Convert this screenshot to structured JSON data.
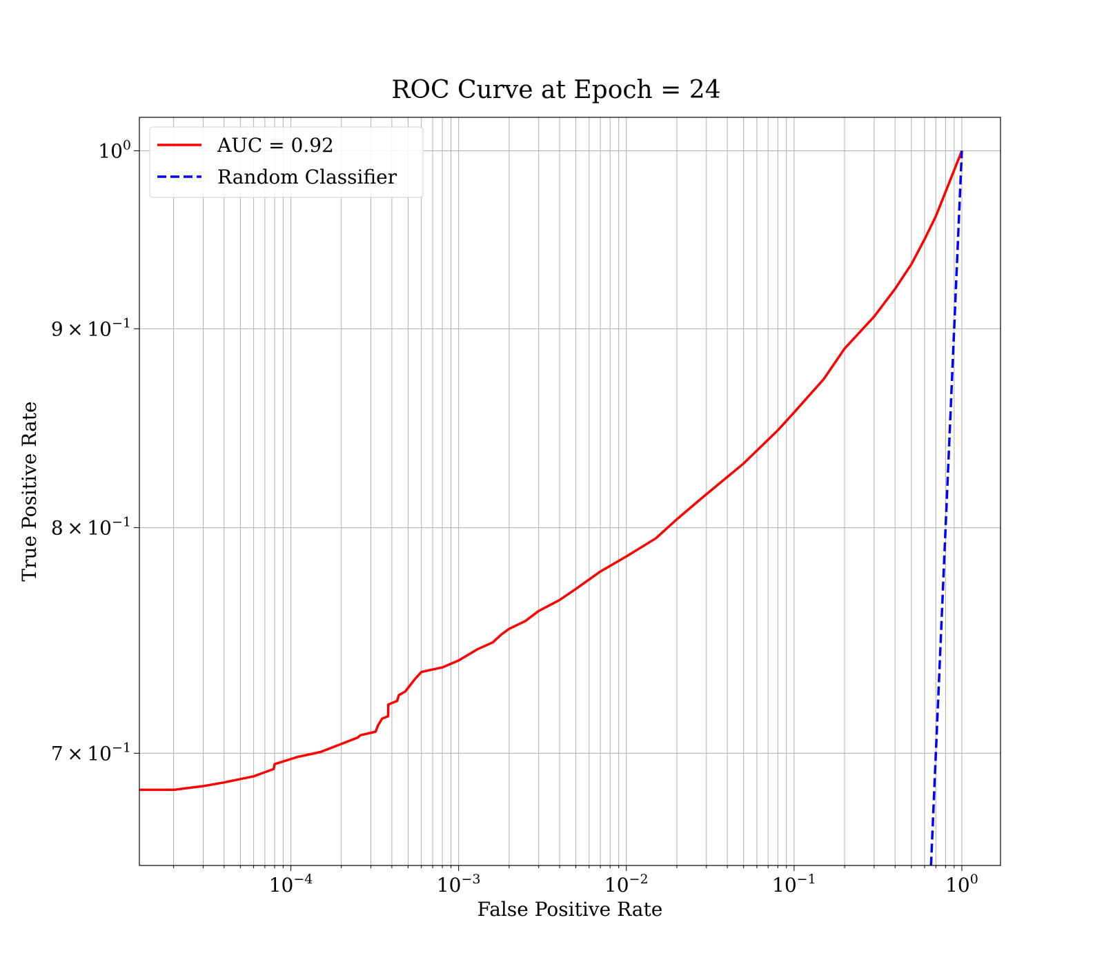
{
  "chart_data": {
    "type": "line",
    "title": "ROC Curve at Epoch = 24",
    "xlabel": "False Positive Rate",
    "ylabel": "True Positive Rate",
    "xscale": "log",
    "yscale": "log",
    "xlim": [
      1.25e-05,
      1.7
    ],
    "ylim": [
      0.655,
      1.02
    ],
    "grid": "both-major-minor",
    "legend_position": "top-left",
    "x_tick_labels": [
      {
        "value": 0.0001,
        "mantissa": "",
        "exponent": "−4"
      },
      {
        "value": 0.001,
        "mantissa": "",
        "exponent": "−3"
      },
      {
        "value": 0.01,
        "mantissa": "",
        "exponent": "−2"
      },
      {
        "value": 0.1,
        "mantissa": "",
        "exponent": "−1"
      },
      {
        "value": 1,
        "mantissa": "",
        "exponent": "0"
      }
    ],
    "y_tick_labels": [
      {
        "value": 1.0,
        "mantissa": "",
        "exponent": "0"
      },
      {
        "value": 0.9,
        "mantissa": "9",
        "exponent": "−1"
      },
      {
        "value": 0.8,
        "mantissa": "8",
        "exponent": "−1"
      },
      {
        "value": 0.7,
        "mantissa": "7",
        "exponent": "−1"
      }
    ],
    "series": [
      {
        "name": "AUC = 0.92",
        "color": "#ff0000",
        "style": "solid",
        "x": [
          1.25e-05,
          2e-05,
          3e-05,
          4e-05,
          6e-05,
          7.9e-05,
          8e-05,
          0.00011,
          0.00015,
          0.00025,
          0.00026,
          0.00032,
          0.00033,
          0.00035,
          0.00038,
          0.000381,
          0.00043,
          0.00044,
          0.00048,
          0.00055,
          0.0006,
          0.0008,
          0.001,
          0.0013,
          0.0016,
          0.0018,
          0.002,
          0.0025,
          0.003,
          0.004,
          0.005,
          0.007,
          0.01,
          0.015,
          0.02,
          0.03,
          0.05,
          0.08,
          0.1,
          0.15,
          0.2,
          0.3,
          0.4,
          0.5,
          0.6,
          0.7,
          0.8,
          1.0
        ],
        "y": [
          0.685,
          0.685,
          0.6865,
          0.688,
          0.6905,
          0.6935,
          0.6955,
          0.6985,
          0.7005,
          0.7065,
          0.7075,
          0.709,
          0.7115,
          0.7145,
          0.7155,
          0.7205,
          0.722,
          0.7245,
          0.726,
          0.7315,
          0.7345,
          0.7365,
          0.7395,
          0.7445,
          0.7475,
          0.751,
          0.7535,
          0.757,
          0.7615,
          0.7665,
          0.7715,
          0.7795,
          0.7865,
          0.795,
          0.804,
          0.816,
          0.831,
          0.8475,
          0.8565,
          0.8735,
          0.8895,
          0.9065,
          0.9215,
          0.935,
          0.949,
          0.962,
          0.976,
          1.0
        ]
      },
      {
        "name": "Random Classifier",
        "color": "#0000ff",
        "style": "dashed",
        "x": [
          0.63,
          1.0
        ],
        "y": [
          0.63,
          1.0
        ]
      }
    ]
  }
}
